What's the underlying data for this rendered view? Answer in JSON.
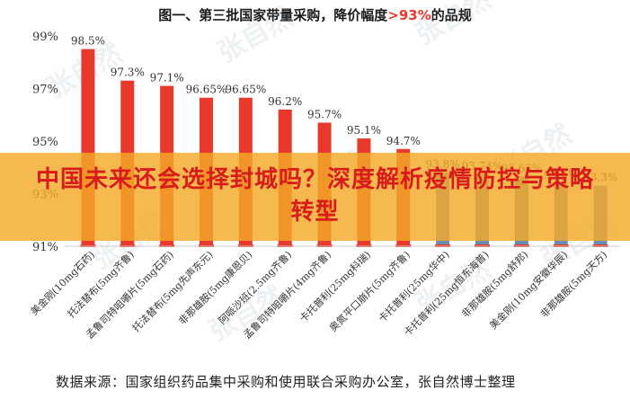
{
  "title": {
    "prefix": "图一、第三批国家带量采购，降价幅度",
    "highlight": ">93%",
    "suffix": "的品规"
  },
  "chart_data": {
    "type": "bar",
    "title": "图一、第三批国家带量采购，降价幅度>93%的品规",
    "xlabel": "",
    "ylabel": "",
    "ylim": [
      91,
      99
    ],
    "y_ticks": [
      "91%",
      "93%",
      "95%",
      "97%",
      "99%"
    ],
    "grid": false,
    "categories": [
      "美金刚(10mg石药)",
      "托法替布(5mg齐鲁)",
      "孟鲁司特咀嚼片(5mg石药)",
      "托法替布(5mg先声东元)",
      "非那雄胺(5mg康恩贝)",
      "阿哌沙班(2.5mg齐鲁)",
      "孟鲁司特咀嚼片(4mg齐鲁)",
      "卡托普利(25mg科瑞)",
      "奥氮平口崩片(5mg齐鲁)",
      "卡托普利(25mg华中)",
      "卡托普利(25mg恒东海普)",
      "非那雄胺(5mg舒邦)",
      "美金刚(10mg安徽华辰)",
      "非那雄胺(5mg天方)"
    ],
    "values": [
      98.5,
      97.3,
      97.1,
      96.65,
      96.65,
      96.2,
      95.7,
      95.1,
      94.7,
      93.8,
      93.74,
      93.65,
      93.4,
      93.3
    ],
    "value_labels": [
      "98.5%",
      "97.3%",
      "97.1%",
      "96.65%",
      "96.65%",
      "96.2%",
      "95.7%",
      "95.1%",
      "94.7%",
      "93.8%",
      "93.74%",
      "93.65%",
      "93.4%",
      "93.3%"
    ],
    "bar_colors": [
      "#e8392c",
      "#e8392c",
      "#e8392c",
      "#e8392c",
      "#e8392c",
      "#e8392c",
      "#e8392c",
      "#e8392c",
      "#e8392c",
      "#6b8cb0",
      "#6b8cb0",
      "#6b8cb0",
      "#6b8cb0",
      "#6b8cb0"
    ],
    "baseline_color": "#e8392c"
  },
  "banner": {
    "text": "中国未来还会选择封城吗？深度解析疫情防控与策略转型"
  },
  "source": "数据来源：国家组织药品集中采购和使用联合采购办公室，张自然博士整理",
  "watermark": "张自然"
}
